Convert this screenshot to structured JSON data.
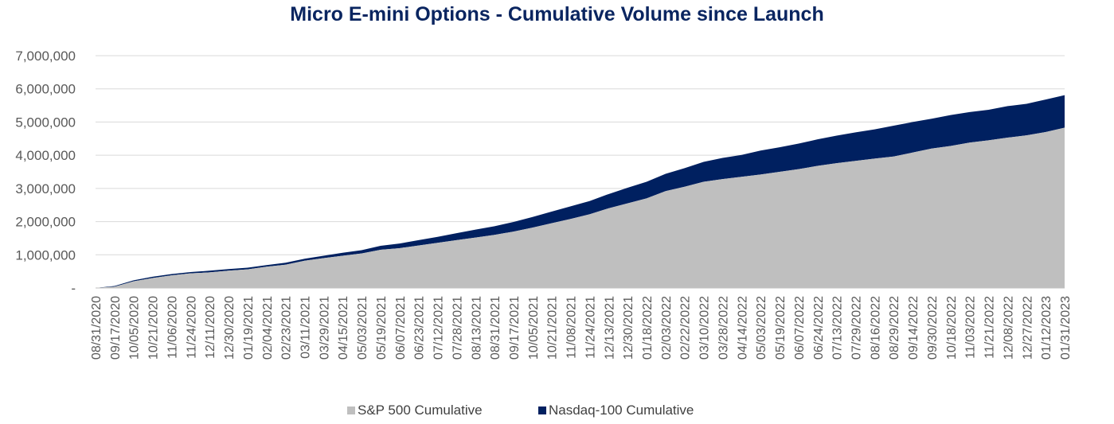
{
  "chart_data": {
    "type": "area",
    "stacked": true,
    "title": "Micro E-mini Options - Cumulative Volume since Launch",
    "xlabel": "",
    "ylabel": "",
    "ylim": [
      0,
      7000000
    ],
    "y_ticks": [
      0,
      1000000,
      2000000,
      3000000,
      4000000,
      5000000,
      6000000,
      7000000
    ],
    "y_tick_labels": [
      "-",
      "1,000,000",
      "2,000,000",
      "3,000,000",
      "4,000,000",
      "5,000,000",
      "6,000,000",
      "7,000,000"
    ],
    "x_tick_labels": [
      "08/31/2020",
      "09/17/2020",
      "10/05/2020",
      "10/21/2020",
      "11/06/2020",
      "11/24/2020",
      "12/11/2020",
      "12/30/2020",
      "01/19/2021",
      "02/04/2021",
      "02/23/2021",
      "03/11/2021",
      "03/29/2021",
      "04/15/2021",
      "05/03/2021",
      "05/19/2021",
      "06/07/2021",
      "06/23/2021",
      "07/12/2021",
      "07/28/2021",
      "08/13/2021",
      "08/31/2021",
      "09/17/2021",
      "10/05/2021",
      "10/21/2021",
      "11/08/2021",
      "11/24/2021",
      "12/13/2021",
      "12/30/2021",
      "01/18/2022",
      "02/03/2022",
      "02/22/2022",
      "03/10/2022",
      "03/28/2022",
      "04/14/2022",
      "05/03/2022",
      "05/19/2022",
      "06/07/2022",
      "06/24/2022",
      "07/13/2022",
      "07/29/2022",
      "08/16/2022",
      "08/29/2022",
      "09/14/2022",
      "09/30/2022",
      "10/18/2022",
      "11/03/2022",
      "11/21/2022",
      "12/08/2022",
      "12/27/2022",
      "01/12/2023",
      "01/31/2023"
    ],
    "grid": true,
    "legend_position": "bottom",
    "series": [
      {
        "name": "S&P 500 Cumulative",
        "color": "#bfbfbf",
        "values": [
          0,
          40000,
          200000,
          300000,
          380000,
          440000,
          470000,
          520000,
          560000,
          640000,
          700000,
          820000,
          900000,
          970000,
          1040000,
          1150000,
          1200000,
          1280000,
          1360000,
          1440000,
          1520000,
          1600000,
          1700000,
          1820000,
          1950000,
          2080000,
          2220000,
          2400000,
          2550000,
          2700000,
          2920000,
          3050000,
          3200000,
          3280000,
          3350000,
          3420000,
          3500000,
          3580000,
          3680000,
          3760000,
          3830000,
          3900000,
          3960000,
          4080000,
          4200000,
          4280000,
          4380000,
          4450000,
          4530000,
          4600000,
          4700000,
          4830000
        ]
      },
      {
        "name": "Nasdaq-100 Cumulative",
        "color": "#002060",
        "values": [
          0,
          20000,
          30000,
          40000,
          40000,
          40000,
          50000,
          50000,
          50000,
          50000,
          60000,
          60000,
          70000,
          90000,
          100000,
          120000,
          140000,
          160000,
          180000,
          210000,
          240000,
          260000,
          290000,
          320000,
          350000,
          380000,
          400000,
          430000,
          470000,
          500000,
          520000,
          560000,
          600000,
          640000,
          660000,
          720000,
          740000,
          770000,
          800000,
          830000,
          860000,
          880000,
          930000,
          920000,
          900000,
          930000,
          920000,
          920000,
          950000,
          950000,
          980000,
          980000
        ]
      }
    ]
  }
}
